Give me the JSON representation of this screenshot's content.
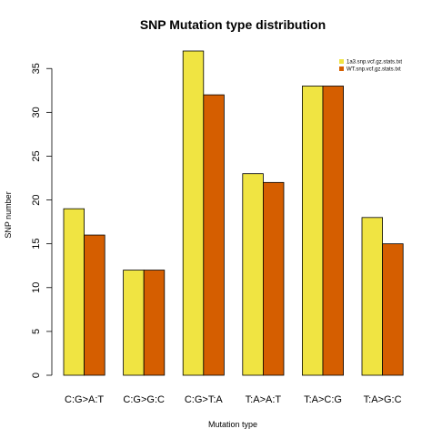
{
  "chart_data": {
    "type": "bar",
    "title": "SNP Mutation type distribution",
    "xlabel": "Mutation type",
    "ylabel": "SNP number",
    "categories": [
      "C:G>A:T",
      "C:G>G:C",
      "C:G>T:A",
      "T:A>A:T",
      "T:A>C:G",
      "T:A>G:C"
    ],
    "series": [
      {
        "name": "1a3.snp.vcf.gz.stats.txt",
        "color": "#F0E442",
        "values": [
          19,
          12,
          37,
          23,
          33,
          18
        ]
      },
      {
        "name": "WT.snp.vcf.gz.stats.txt",
        "color": "#D55E00",
        "values": [
          16,
          12,
          32,
          22,
          33,
          15
        ]
      }
    ],
    "ylim": [
      0,
      37
    ],
    "yticks": [
      0,
      5,
      10,
      15,
      20,
      25,
      30,
      35
    ],
    "grid": false,
    "legend_position": "top-right"
  }
}
